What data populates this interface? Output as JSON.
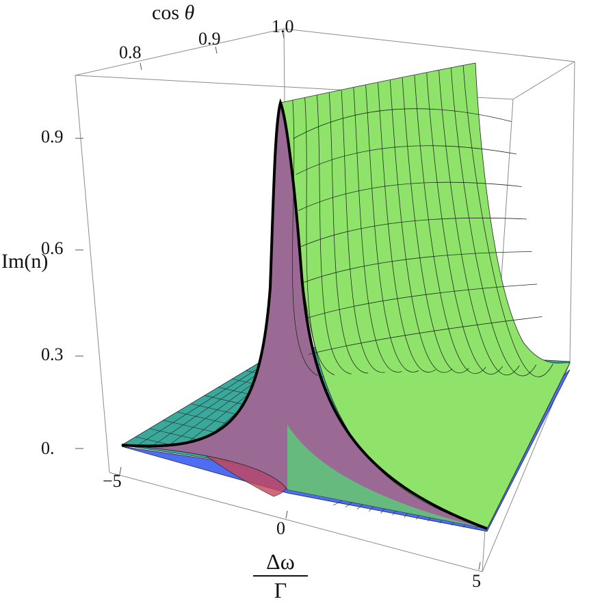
{
  "chart_data": {
    "type": "surface3d",
    "axes": {
      "x": {
        "label_numerator": "Δω",
        "label_denominator": "Γ",
        "range": [
          -5,
          5
        ],
        "ticks": [
          "−5",
          "0",
          "5"
        ]
      },
      "y": {
        "label_prefix": "cos",
        "label_symbol": "θ",
        "range": [
          0.7,
          1.0
        ],
        "ticks": [
          "0.8",
          "0.9",
          "1.0"
        ]
      },
      "z": {
        "label": "Im(n)",
        "range": [
          0,
          1.0
        ],
        "ticks": [
          "0.",
          "0.3",
          "0.6",
          "0.9"
        ]
      }
    },
    "surfaces": [
      {
        "name": "",
        "description": "Lorentzian resonance peak in Δω/Γ, rising toward cos θ = 1",
        "peak": 1.0,
        "colors": [
          "#5ec87a",
          "#a7ee6a",
          "#9a6a95"
        ]
      },
      {
        "name": "",
        "description": "base sheet near zero",
        "colors": [
          "#3aa89b",
          "#4e6df0"
        ]
      }
    ],
    "highlight_curve": {
      "description": "cross-section at cos θ = 1.0",
      "color": "#000000"
    }
  }
}
